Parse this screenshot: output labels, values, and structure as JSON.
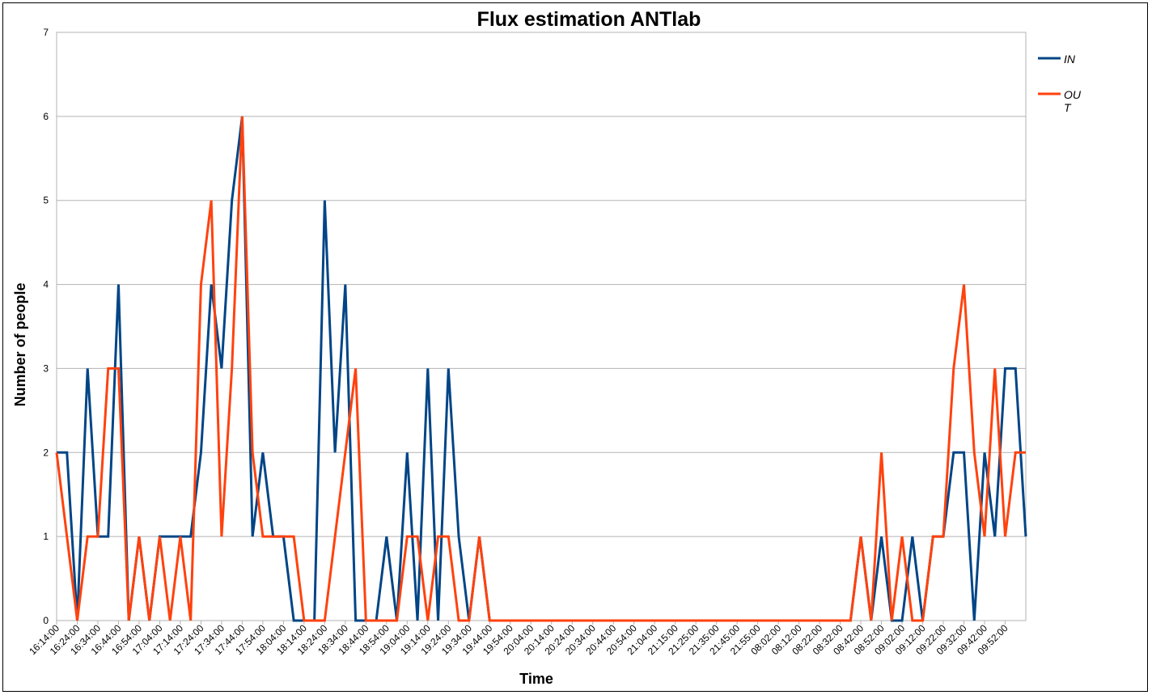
{
  "chart_data": {
    "type": "line",
    "title": "Flux estimation ANTlab",
    "xlabel": "Time",
    "ylabel": "Number of people",
    "ylim": [
      0,
      7
    ],
    "yticks": [
      0,
      1,
      2,
      3,
      4,
      5,
      6,
      7
    ],
    "grid": "horizontal",
    "legend": "right",
    "tick_labels": [
      "16:14:00",
      "16:24:00",
      "16:34:00",
      "16:44:00",
      "16:54:00",
      "17:04:00",
      "17:14:00",
      "17:24:00",
      "17:34:00",
      "17:44:00",
      "17:54:00",
      "18:04:00",
      "18:14:00",
      "18:24:00",
      "18:34:00",
      "18:44:00",
      "18:54:00",
      "19:04:00",
      "19:14:00",
      "19:24:00",
      "19:34:00",
      "19:44:00",
      "19:54:00",
      "20:04:00",
      "20:14:00",
      "20:24:00",
      "20:34:00",
      "20:44:00",
      "20:54:00",
      "21:04:00",
      "21:15:00",
      "21:25:00",
      "21:35:00",
      "21:45:00",
      "21:55:00",
      "08:02:00",
      "08:12:00",
      "08:22:00",
      "08:32:00",
      "08:42:00",
      "08:52:00",
      "09:02:00",
      "09:12:00",
      "09:22:00",
      "09:32:00",
      "09:42:00",
      "09:52:00"
    ],
    "series": [
      {
        "name": "IN",
        "color": "#004586",
        "values": [
          2,
          2,
          0,
          3,
          1,
          1,
          4,
          0,
          1,
          0,
          1,
          1,
          1,
          1,
          2,
          4,
          3,
          5,
          6,
          1,
          2,
          1,
          1,
          0,
          0,
          0,
          5,
          2,
          4,
          0,
          0,
          0,
          1,
          0,
          2,
          0,
          3,
          0,
          3,
          1,
          0,
          1,
          0,
          0,
          0,
          0,
          0,
          0,
          0,
          0,
          0,
          0,
          0,
          0,
          0,
          0,
          0,
          0,
          0,
          0,
          0,
          0,
          0,
          0,
          0,
          0,
          0,
          0,
          0,
          0,
          0,
          0,
          0,
          0,
          0,
          0,
          0,
          0,
          1,
          0,
          1,
          0,
          0,
          1,
          0,
          1,
          1,
          2,
          2,
          0,
          2,
          1,
          3,
          3,
          1
        ]
      },
      {
        "name": "OUT",
        "display_name": "OU\nT",
        "color": "#ff420e",
        "values": [
          2,
          1,
          0,
          1,
          1,
          3,
          3,
          0,
          1,
          0,
          1,
          0,
          1,
          0,
          4,
          5,
          1,
          3,
          6,
          2,
          1,
          1,
          1,
          1,
          0,
          0,
          0,
          1,
          2,
          3,
          0,
          0,
          0,
          0,
          1,
          1,
          0,
          1,
          1,
          0,
          0,
          1,
          0,
          0,
          0,
          0,
          0,
          0,
          0,
          0,
          0,
          0,
          0,
          0,
          0,
          0,
          0,
          0,
          0,
          0,
          0,
          0,
          0,
          0,
          0,
          0,
          0,
          0,
          0,
          0,
          0,
          0,
          0,
          0,
          0,
          0,
          0,
          0,
          1,
          0,
          2,
          0,
          1,
          0,
          0,
          1,
          1,
          3,
          4,
          2,
          1,
          3,
          1,
          2,
          2
        ]
      }
    ]
  }
}
